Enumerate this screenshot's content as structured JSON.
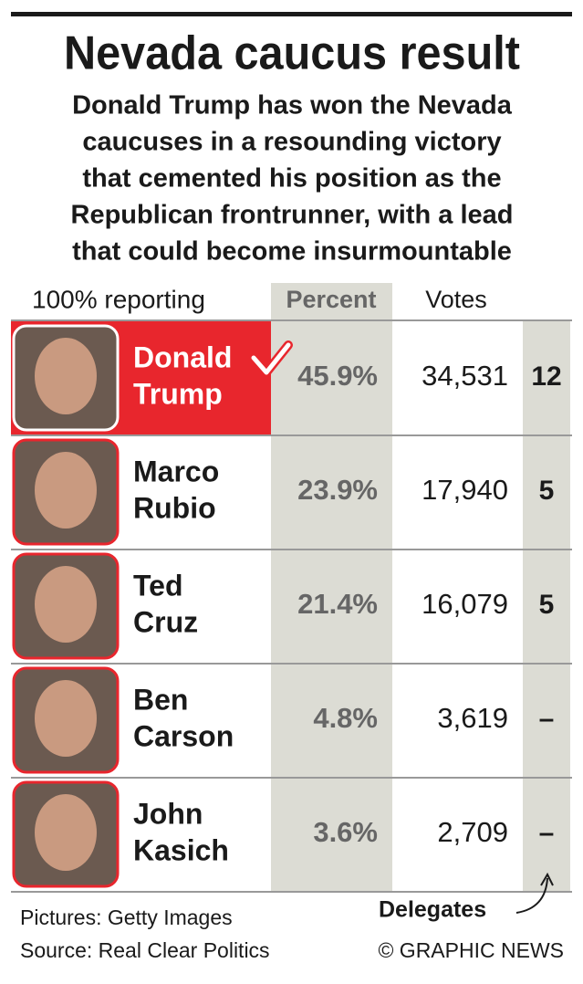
{
  "header": {
    "title": "Nevada caucus result",
    "subtitle": [
      "Donald Trump has won the Nevada",
      "caucuses in a resounding victory",
      "that cemented his position as the",
      "Republican frontrunner, with a lead",
      "that could become insurmountable"
    ]
  },
  "table": {
    "status": "100% reporting",
    "columns": [
      "Percent",
      "Votes"
    ],
    "rows": [
      {
        "name": [
          "Donald",
          "Trump"
        ],
        "percent": "45.9%",
        "votes": "34,531",
        "delegates": "12"
      },
      {
        "name": [
          "Marco",
          "Rubio"
        ],
        "percent": "23.9%",
        "votes": "17,940",
        "delegates": "5"
      },
      {
        "name": [
          "Ted",
          "Cruz"
        ],
        "percent": "21.4%",
        "votes": "16,079",
        "delegates": "5"
      },
      {
        "name": [
          "Ben",
          "Carson"
        ],
        "percent": "4.8%",
        "votes": "3,619",
        "delegates": "–"
      },
      {
        "name": [
          "John",
          "Kasich"
        ],
        "percent": "3.6%",
        "votes": "2,709",
        "delegates": "–"
      }
    ]
  },
  "footer": {
    "delegates_label": "Delegates",
    "pictures": "Pictures: Getty Images",
    "source": "Source: Real Clear Politics",
    "credit": "© GRAPHIC NEWS"
  }
}
